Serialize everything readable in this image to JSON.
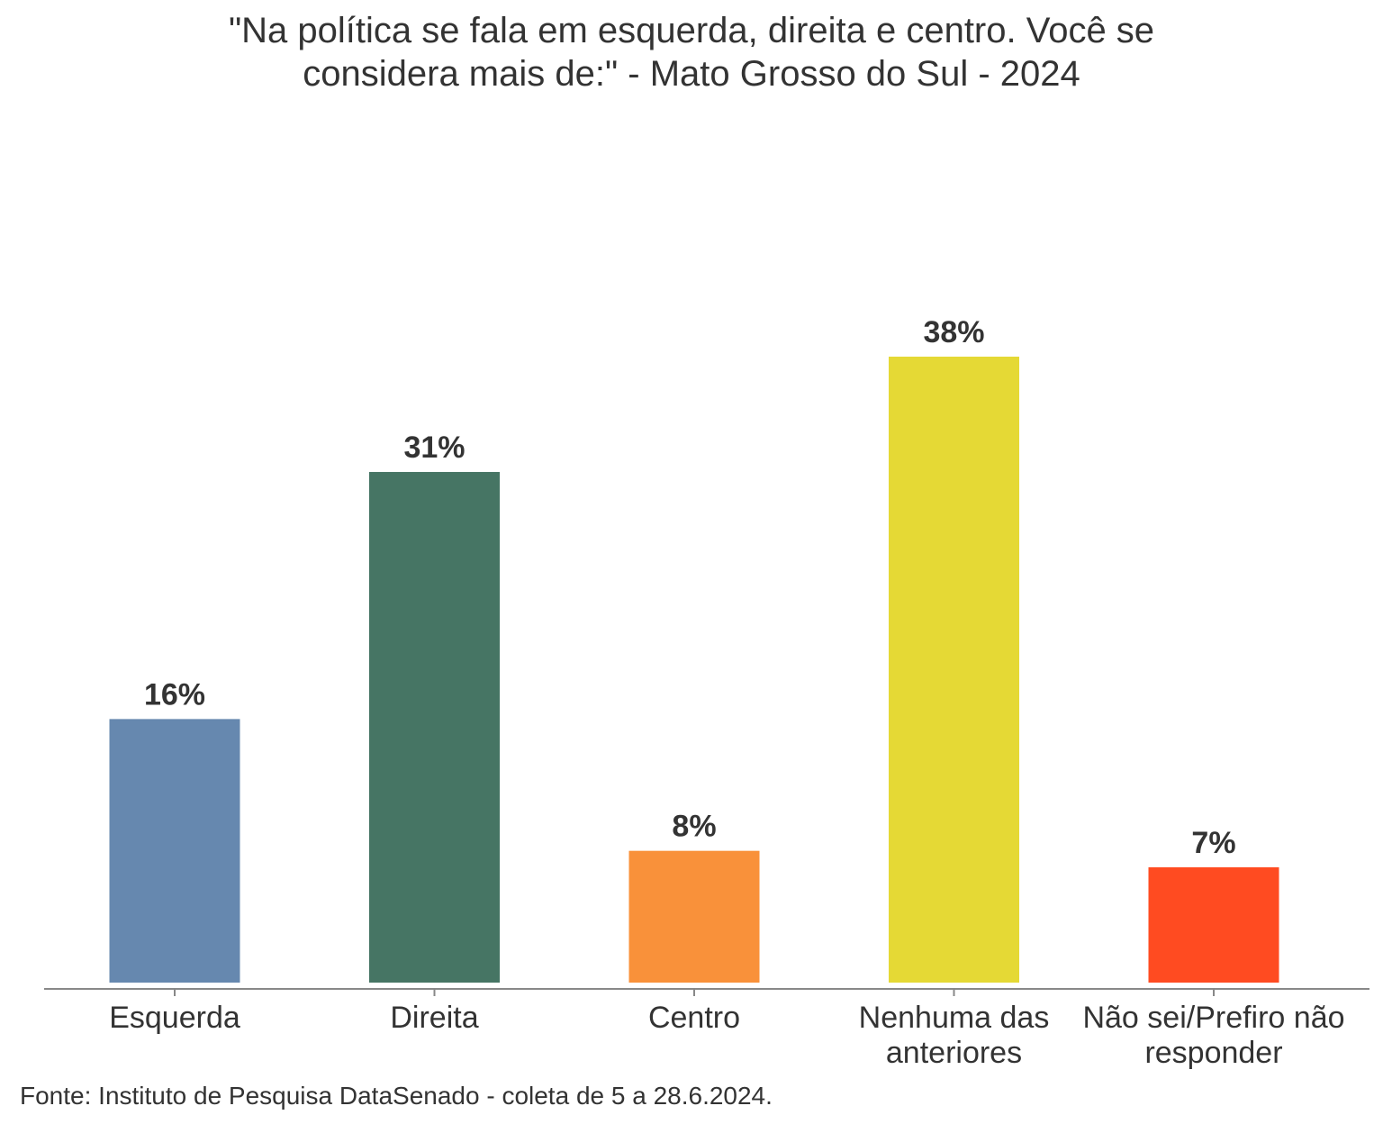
{
  "chart_data": {
    "type": "bar",
    "title_lines": [
      "\"Na política se fala em esquerda, direita e centro. Você se",
      "considera mais de:\" - Mato Grosso do Sul - 2024"
    ],
    "categories": [
      [
        "Esquerda"
      ],
      [
        "Direita"
      ],
      [
        "Centro"
      ],
      [
        "Nenhuma das",
        "anteriores"
      ],
      [
        "Não sei/Prefiro não",
        "responder"
      ]
    ],
    "values": [
      16,
      31,
      8,
      38,
      7
    ],
    "value_labels": [
      "16%",
      "31%",
      "8%",
      "38%",
      "7%"
    ],
    "colors": [
      "#6688AF",
      "#467564",
      "#F9913A",
      "#E5D935",
      "#FF4B21"
    ],
    "ylim": [
      0,
      42
    ],
    "xlabel": "",
    "ylabel": "",
    "grid": false
  },
  "source": "Fonte: Instituto de Pesquisa DataSenado - coleta de 5 a 28.6.2024."
}
